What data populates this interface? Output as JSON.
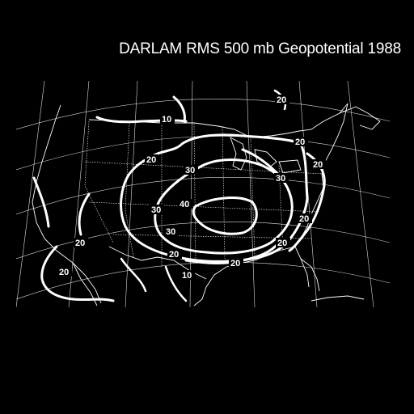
{
  "title": "DARLAM RMS 500 mb Geopotential 1988",
  "colors": {
    "background": "#000000",
    "foreground": "#ffffff"
  },
  "contour_levels": [
    "10",
    "20",
    "30",
    "40"
  ],
  "contour_labels": [
    {
      "text": "10",
      "contour": "10"
    },
    {
      "text": "20",
      "contour": "20"
    },
    {
      "text": "20",
      "contour": "20"
    },
    {
      "text": "20",
      "contour": "20"
    },
    {
      "text": "20",
      "contour": "20"
    },
    {
      "text": "20",
      "contour": "20"
    },
    {
      "text": "20",
      "contour": "20"
    },
    {
      "text": "20",
      "contour": "20"
    },
    {
      "text": "20",
      "contour": "20"
    },
    {
      "text": "20",
      "contour": "20"
    },
    {
      "text": "20",
      "contour": "20"
    },
    {
      "text": "30",
      "contour": "30"
    },
    {
      "text": "30",
      "contour": "30"
    },
    {
      "text": "30",
      "contour": "30"
    },
    {
      "text": "30",
      "contour": "30"
    },
    {
      "text": "40",
      "contour": "40"
    },
    {
      "text": "10",
      "contour": "10"
    }
  ]
}
